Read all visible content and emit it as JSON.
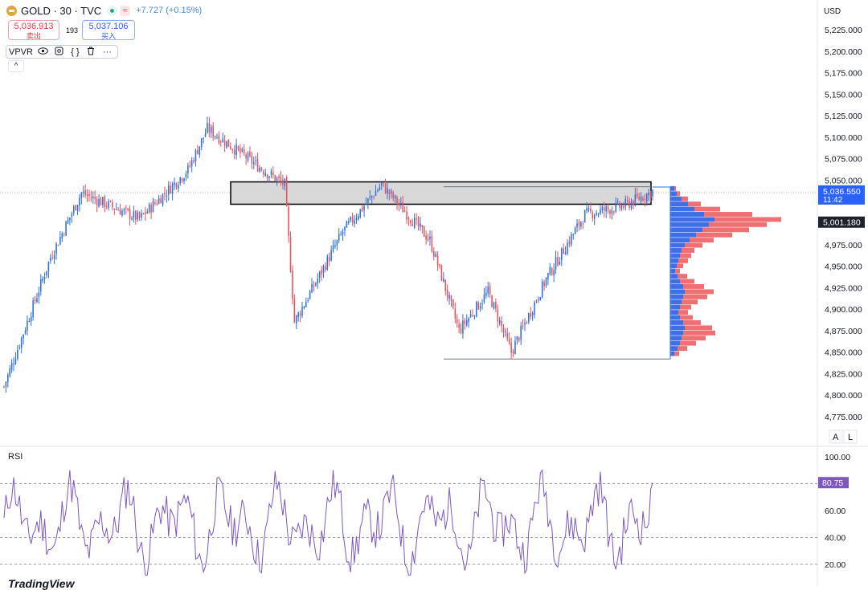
{
  "header": {
    "symbol": "GOLD · 30 · TVC",
    "change": "+7.727 (+0.15%)",
    "sell_price": "5,036.913",
    "sell_label": "卖出",
    "spread": "193",
    "buy_price": "5,037.106",
    "buy_label": "买入",
    "indicator_name": "VPVR",
    "collapse_glyph": "^"
  },
  "price_axis": {
    "currency": "USD",
    "ticks": [
      "5,225.000",
      "5,200.000",
      "5,175.000",
      "5,150.000",
      "5,125.000",
      "5,100.000",
      "5,075.000",
      "5,050.000",
      "4,975.000",
      "4,950.000",
      "4,925.000",
      "4,900.000",
      "4,875.000",
      "4,850.000",
      "4,825.000",
      "4,800.000",
      "4,775.000"
    ],
    "tick_values": [
      5225,
      5200,
      5175,
      5150,
      5125,
      5100,
      5075,
      5050,
      4975,
      4950,
      4925,
      4900,
      4875,
      4850,
      4825,
      4800,
      4775
    ],
    "current_price": "5,036.550",
    "countdown": "11:42",
    "poc_price": "5,001.180",
    "auto_label": "A",
    "log_label": "L"
  },
  "rsi_pane": {
    "label": "RSI",
    "value": "80.75",
    "ticks": [
      "100.00",
      "60.00",
      "40.00",
      "20.00"
    ],
    "tick_values": [
      100,
      60,
      40,
      20
    ]
  },
  "branding": {
    "text": "TradingView"
  },
  "colors": {
    "up": "#2f6fe0",
    "down": "#e5535c",
    "rsi": "#7e57c2",
    "vp_up": "#3f6fe8",
    "vp_down": "#ef6f72",
    "zone": "#d4d4d4"
  },
  "chart_data": {
    "type": "candlestick",
    "title": "GOLD · 30 · TVC",
    "ylim": [
      4770,
      5240
    ],
    "segments": [
      {
        "from": 0,
        "to": 24,
        "start": 4810,
        "end": 4960
      },
      {
        "from": 24,
        "to": 40,
        "start": 4960,
        "end": 5035
      },
      {
        "from": 40,
        "to": 70,
        "start": 5035,
        "end": 5005
      },
      {
        "from": 70,
        "to": 95,
        "start": 5005,
        "end": 5062
      },
      {
        "from": 95,
        "to": 105,
        "start": 5062,
        "end": 5110
      },
      {
        "from": 105,
        "to": 135,
        "start": 5110,
        "end": 5060
      },
      {
        "from": 135,
        "to": 145,
        "start": 5060,
        "end": 5045
      },
      {
        "from": 145,
        "to": 150,
        "start": 5045,
        "end": 4885
      },
      {
        "from": 150,
        "to": 175,
        "start": 4885,
        "end": 4990
      },
      {
        "from": 175,
        "to": 195,
        "start": 4990,
        "end": 5045
      },
      {
        "from": 195,
        "to": 220,
        "start": 5045,
        "end": 4980
      },
      {
        "from": 220,
        "to": 235,
        "start": 4980,
        "end": 4875
      },
      {
        "from": 235,
        "to": 250,
        "start": 4875,
        "end": 4920
      },
      {
        "from": 250,
        "to": 262,
        "start": 4920,
        "end": 4850
      },
      {
        "from": 262,
        "to": 280,
        "start": 4850,
        "end": 4935
      },
      {
        "from": 280,
        "to": 300,
        "start": 4935,
        "end": 5010
      },
      {
        "from": 300,
        "to": 320,
        "start": 5010,
        "end": 5020
      },
      {
        "from": 320,
        "to": 336,
        "start": 5020,
        "end": 5038
      }
    ],
    "count": 336,
    "high_label_price": 5118,
    "low_price": 4845,
    "zone": {
      "top": 5048,
      "bottom": 5022
    },
    "profile_range": {
      "low": 4842,
      "high": 5042
    },
    "profile_levels": [
      {
        "price": 5040,
        "up": 5,
        "down": 2
      },
      {
        "price": 5034,
        "up": 8,
        "down": 4
      },
      {
        "price": 5028,
        "up": 14,
        "down": 8
      },
      {
        "price": 5022,
        "up": 22,
        "down": 16
      },
      {
        "price": 5016,
        "up": 30,
        "down": 32
      },
      {
        "price": 5010,
        "up": 42,
        "down": 60
      },
      {
        "price": 5004,
        "up": 55,
        "down": 83
      },
      {
        "price": 4998,
        "up": 48,
        "down": 72
      },
      {
        "price": 4992,
        "up": 40,
        "down": 58
      },
      {
        "price": 4986,
        "up": 32,
        "down": 45
      },
      {
        "price": 4980,
        "up": 24,
        "down": 30
      },
      {
        "price": 4974,
        "up": 18,
        "down": 22
      },
      {
        "price": 4968,
        "up": 14,
        "down": 16
      },
      {
        "price": 4962,
        "up": 12,
        "down": 14
      },
      {
        "price": 4956,
        "up": 10,
        "down": 12
      },
      {
        "price": 4950,
        "up": 8,
        "down": 8
      },
      {
        "price": 4944,
        "up": 6,
        "down": 6
      },
      {
        "price": 4938,
        "up": 9,
        "down": 12
      },
      {
        "price": 4932,
        "up": 12,
        "down": 18
      },
      {
        "price": 4926,
        "up": 16,
        "down": 26
      },
      {
        "price": 4920,
        "up": 18,
        "down": 36
      },
      {
        "price": 4914,
        "up": 16,
        "down": 30
      },
      {
        "price": 4908,
        "up": 14,
        "down": 20
      },
      {
        "price": 4902,
        "up": 12,
        "down": 14
      },
      {
        "price": 4896,
        "up": 10,
        "down": 12
      },
      {
        "price": 4890,
        "up": 12,
        "down": 16
      },
      {
        "price": 4884,
        "up": 16,
        "down": 22
      },
      {
        "price": 4878,
        "up": 18,
        "down": 34
      },
      {
        "price": 4872,
        "up": 16,
        "down": 40
      },
      {
        "price": 4866,
        "up": 14,
        "down": 30
      },
      {
        "price": 4860,
        "up": 12,
        "down": 20
      },
      {
        "price": 4854,
        "up": 9,
        "down": 12
      },
      {
        "price": 4848,
        "up": 5,
        "down": 6
      }
    ],
    "rsi": {
      "overbought": 80,
      "oversold": 20,
      "upper_band": 80,
      "lower_band": 40,
      "last": 80.75
    }
  }
}
